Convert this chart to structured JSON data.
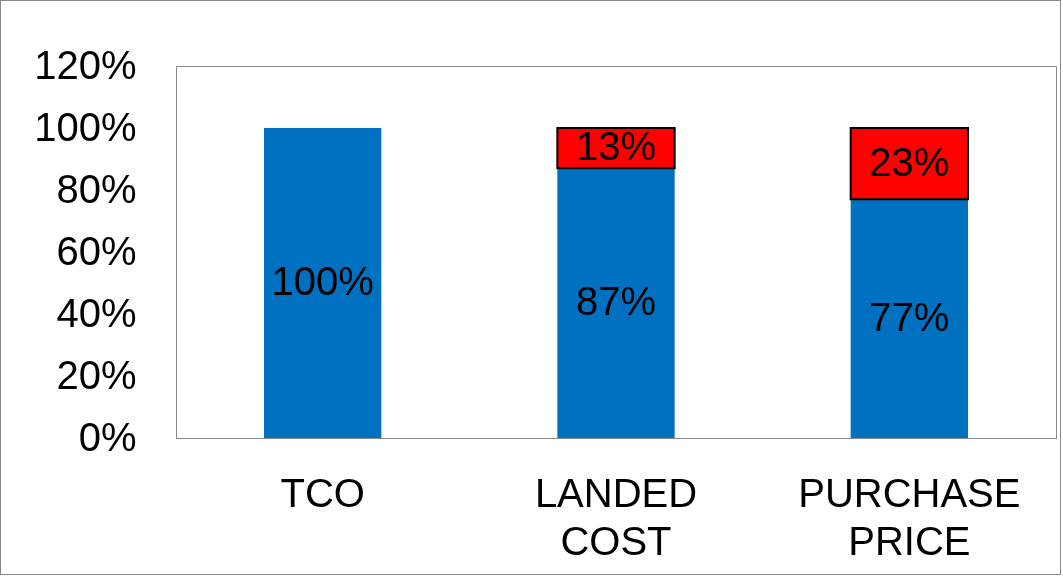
{
  "chart_data": {
    "type": "bar",
    "stacked": true,
    "categories": [
      "TCO",
      "LANDED COST",
      "PURCHASE PRICE"
    ],
    "series": [
      {
        "color": "#0070c0",
        "values": [
          100,
          87,
          77
        ],
        "value_labels": [
          "100%",
          "87%",
          "77%"
        ]
      },
      {
        "color": "#ff0000",
        "values": [
          null,
          13,
          23
        ],
        "value_labels": [
          null,
          "13%",
          "23%"
        ]
      }
    ],
    "ylim": [
      0,
      120
    ],
    "yticks": [
      {
        "value": 0,
        "label": "0%"
      },
      {
        "value": 20,
        "label": "20%"
      },
      {
        "value": 40,
        "label": "40%"
      },
      {
        "value": 60,
        "label": "60%"
      },
      {
        "value": 80,
        "label": "80%"
      },
      {
        "value": 100,
        "label": "100%"
      },
      {
        "value": 120,
        "label": "120%"
      }
    ],
    "grid": false,
    "legend": false
  }
}
